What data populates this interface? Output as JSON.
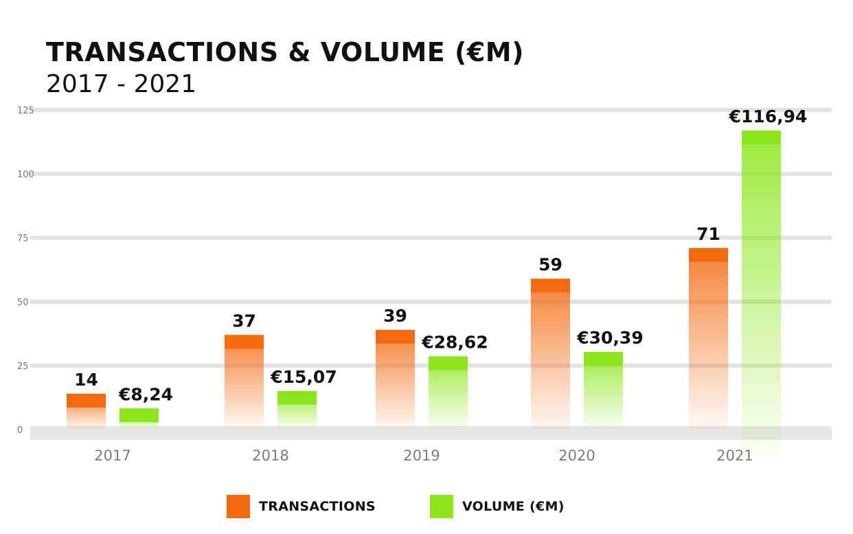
{
  "chart_data": {
    "type": "bar",
    "title": "TRANSACTIONS & VOLUME (€M)",
    "subtitle": "2017 - 2021",
    "categories": [
      "2017",
      "2018",
      "2019",
      "2020",
      "2021"
    ],
    "ylim": [
      0,
      125
    ],
    "yticks": [
      "0",
      "25",
      "50",
      "75",
      "100",
      "125"
    ],
    "grid": true,
    "legend_position": "bottom-center",
    "series": [
      {
        "name": "TRANSACTIONS",
        "values": [
          14,
          37,
          39,
          59,
          71
        ],
        "labels": [
          "14",
          "37",
          "39",
          "59",
          "71"
        ],
        "color": "#f26a0f"
      },
      {
        "name": "VOLUME (€M)",
        "values": [
          8.24,
          15.07,
          28.62,
          30.39,
          116.94
        ],
        "labels": [
          "€8,24",
          "€15,07",
          "€28,62",
          "€30,39",
          "€116,94"
        ],
        "color": "#8ae61a"
      }
    ]
  }
}
